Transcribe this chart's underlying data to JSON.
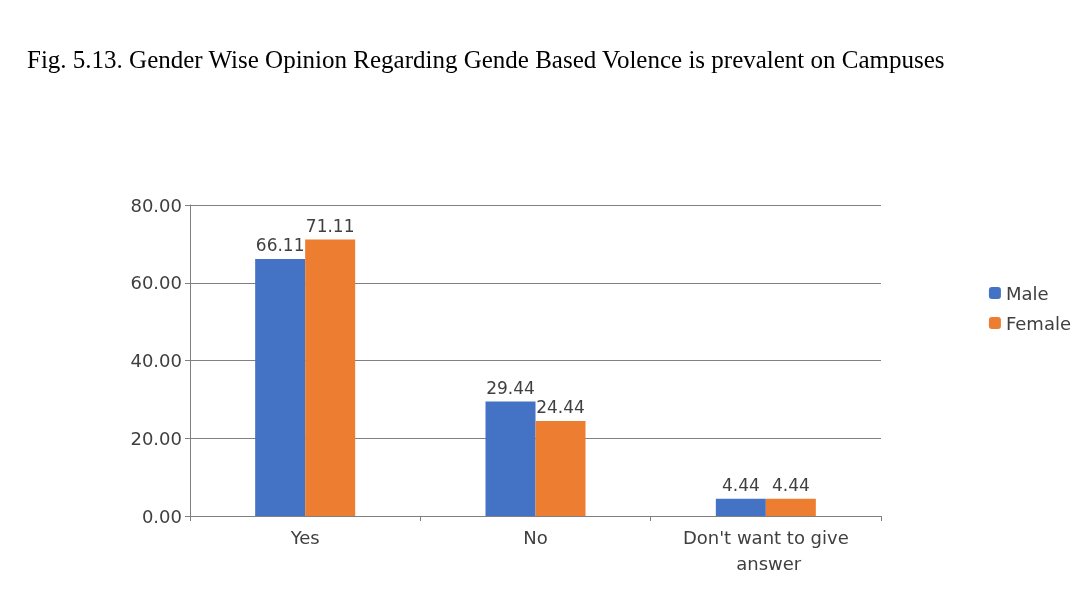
{
  "chart_data": {
    "type": "bar",
    "title": "Fig. 5.13. Gender Wise Opinion Regarding Gende Based Volence is prevalent on Campuses",
    "categories": [
      "Yes",
      "No",
      "Don't want to give answer"
    ],
    "series": [
      {
        "name": "Male",
        "color": "#4472c4",
        "values": [
          66.11,
          29.44,
          4.44
        ]
      },
      {
        "name": "Female",
        "color": "#ed7d31",
        "values": [
          71.11,
          24.44,
          4.44
        ]
      }
    ],
    "ylim": [
      0,
      80
    ],
    "yticks": [
      {
        "value": 0,
        "label": "0.00"
      },
      {
        "value": 20,
        "label": "20.00"
      },
      {
        "value": 40,
        "label": "40.00"
      },
      {
        "value": 60,
        "label": "60.00"
      },
      {
        "value": 80,
        "label": "80.00"
      }
    ],
    "grid": "y",
    "legend": "right",
    "data_labels": true
  }
}
